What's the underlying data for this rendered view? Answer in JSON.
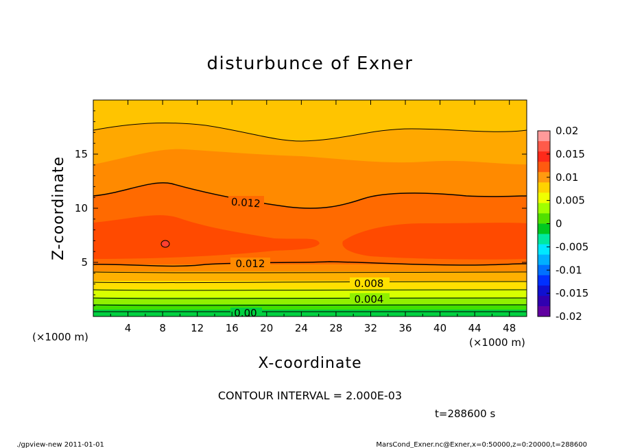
{
  "chart_data": {
    "type": "contour",
    "title": "disturbunce of Exner",
    "xlabel": "X-coordinate",
    "ylabel": "Z-coordinate",
    "x_unit": "(×1000 m)",
    "z_unit": "(×1000 m)",
    "xlim": [
      0,
      50
    ],
    "ylim": [
      0,
      20
    ],
    "x_ticks": [
      4,
      8,
      12,
      16,
      20,
      24,
      28,
      32,
      36,
      40,
      44,
      48
    ],
    "y_ticks": [
      5,
      10,
      15
    ],
    "contour_labels": [
      {
        "text": "0.012",
        "x": 17.5,
        "z": 10.3
      },
      {
        "text": "0.012",
        "x": 17.5,
        "z": 4.9
      },
      {
        "text": "0.008",
        "x": 31.5,
        "z": 3.0
      },
      {
        "text": "0.004",
        "x": 31.5,
        "z": 1.5
      },
      {
        "text": "0.00",
        "x": 17.0,
        "z": 0.3
      }
    ],
    "colorbar": {
      "ticks": [
        "0.02",
        "0.015",
        "0.01",
        "0.005",
        "0",
        "-0.005",
        "-0.01",
        "-0.015",
        "-0.02"
      ],
      "colors": [
        "#ff9a9a",
        "#ff5a4a",
        "#ff2a1a",
        "#ff5a10",
        "#ff9a10",
        "#ffd200",
        "#f0ff00",
        "#a0ff00",
        "#50e000",
        "#00c820",
        "#00e8a0",
        "#00e8ff",
        "#00b0ff",
        "#0070ff",
        "#0030ff",
        "#1010d0",
        "#3000b0",
        "#6000a0"
      ]
    },
    "contour_interval_text": "CONTOUR INTERVAL = 2.000E-03",
    "time_text": "t=288600 s"
  },
  "footer": {
    "left": "./gpview-new  2011-01-01",
    "right": "MarsCond_Exner.nc@Exner,x=0:50000,z=0:20000,t=288600"
  }
}
